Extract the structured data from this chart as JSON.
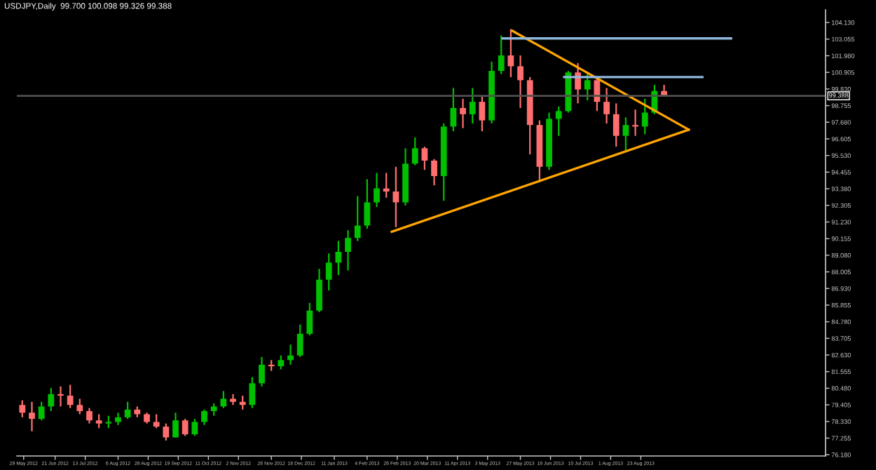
{
  "chart_data": {
    "type": "candlestick",
    "title": "USDJPY,Daily  99.700 100.098 99.326 99.388",
    "x": [
      "2012-05-28",
      "2012-06-04",
      "2012-06-11",
      "2012-06-18",
      "2012-06-25",
      "2012-07-02",
      "2012-07-09",
      "2012-07-16",
      "2012-07-23",
      "2012-07-30",
      "2012-08-06",
      "2012-08-13",
      "2012-08-20",
      "2012-08-27",
      "2012-09-03",
      "2012-09-10",
      "2012-09-17",
      "2012-09-24",
      "2012-10-01",
      "2012-10-08",
      "2012-10-15",
      "2012-10-22",
      "2012-10-29",
      "2012-11-05",
      "2012-11-12",
      "2012-11-19",
      "2012-11-26",
      "2012-12-03",
      "2012-12-10",
      "2012-12-17",
      "2012-12-24",
      "2012-12-31",
      "2013-01-07",
      "2013-01-14",
      "2013-01-21",
      "2013-01-28",
      "2013-02-04",
      "2013-02-11",
      "2013-02-18",
      "2013-02-25",
      "2013-03-04",
      "2013-03-11",
      "2013-03-18",
      "2013-03-25",
      "2013-04-01",
      "2013-04-08",
      "2013-04-15",
      "2013-04-22",
      "2013-04-29",
      "2013-05-06",
      "2013-05-13",
      "2013-05-20",
      "2013-05-27",
      "2013-06-03",
      "2013-06-10",
      "2013-06-17",
      "2013-06-24",
      "2013-07-01",
      "2013-07-08",
      "2013-07-15",
      "2013-07-22",
      "2013-07-29",
      "2013-08-05",
      "2013-08-12",
      "2013-08-19",
      "2013-08-26",
      "2013-09-02",
      "2013-09-09"
    ],
    "ohlc": [
      [
        79.4,
        79.7,
        78.6,
        78.9
      ],
      [
        78.9,
        79.6,
        77.7,
        78.5
      ],
      [
        78.5,
        79.6,
        78.4,
        79.3
      ],
      [
        79.3,
        80.5,
        79.0,
        80.1
      ],
      [
        80.1,
        80.6,
        79.3,
        80.0
      ],
      [
        80.0,
        80.7,
        79.2,
        79.4
      ],
      [
        79.4,
        79.8,
        78.8,
        79.0
      ],
      [
        79.0,
        79.2,
        78.2,
        78.4
      ],
      [
        78.4,
        78.8,
        77.9,
        78.2
      ],
      [
        78.2,
        78.7,
        77.9,
        78.3
      ],
      [
        78.3,
        78.9,
        78.1,
        78.6
      ],
      [
        78.6,
        79.6,
        78.5,
        79.1
      ],
      [
        79.1,
        79.3,
        78.6,
        78.8
      ],
      [
        78.8,
        78.9,
        78.2,
        78.3
      ],
      [
        78.3,
        78.8,
        77.9,
        78.0
      ],
      [
        78.0,
        78.2,
        77.1,
        77.3
      ],
      [
        77.3,
        78.9,
        77.3,
        78.4
      ],
      [
        78.4,
        78.5,
        77.4,
        77.5
      ],
      [
        77.5,
        78.5,
        77.4,
        78.3
      ],
      [
        78.3,
        79.1,
        78.1,
        79.0
      ],
      [
        79.0,
        79.5,
        78.7,
        79.3
      ],
      [
        79.3,
        80.3,
        79.2,
        79.8
      ],
      [
        79.8,
        80.1,
        79.4,
        79.6
      ],
      [
        79.6,
        80.0,
        79.1,
        79.4
      ],
      [
        79.4,
        81.2,
        79.2,
        80.8
      ],
      [
        80.8,
        82.5,
        80.6,
        82.0
      ],
      [
        82.0,
        82.3,
        81.6,
        81.9
      ],
      [
        81.9,
        82.6,
        81.7,
        82.3
      ],
      [
        82.3,
        83.3,
        82.0,
        82.6
      ],
      [
        82.6,
        84.6,
        82.5,
        84.0
      ],
      [
        84.0,
        86.0,
        83.9,
        85.5
      ],
      [
        85.5,
        88.2,
        85.4,
        87.5
      ],
      [
        87.5,
        89.2,
        86.8,
        88.6
      ],
      [
        88.6,
        90.0,
        87.8,
        89.3
      ],
      [
        89.3,
        90.7,
        88.1,
        90.2
      ],
      [
        90.2,
        92.9,
        90.0,
        91.0
      ],
      [
        91.0,
        94.0,
        90.8,
        92.5
      ],
      [
        92.5,
        94.4,
        92.2,
        93.4
      ],
      [
        93.4,
        94.4,
        92.8,
        93.2
      ],
      [
        93.2,
        94.8,
        90.9,
        92.5
      ],
      [
        92.5,
        96.0,
        92.3,
        95.0
      ],
      [
        95.0,
        96.7,
        94.9,
        96.0
      ],
      [
        96.0,
        96.1,
        94.6,
        95.2
      ],
      [
        95.2,
        95.3,
        93.6,
        94.2
      ],
      [
        94.2,
        97.6,
        92.6,
        97.4
      ],
      [
        97.4,
        99.9,
        97.1,
        98.6
      ],
      [
        98.6,
        99.2,
        97.3,
        98.2
      ],
      [
        98.2,
        99.9,
        97.6,
        99.0
      ],
      [
        99.0,
        99.4,
        97.1,
        97.8
      ],
      [
        97.8,
        101.6,
        97.6,
        101.0
      ],
      [
        101.0,
        103.3,
        100.8,
        102.0
      ],
      [
        102.0,
        103.7,
        100.6,
        101.3
      ],
      [
        101.3,
        102.0,
        98.6,
        100.4
      ],
      [
        100.4,
        100.6,
        95.6,
        97.5
      ],
      [
        97.5,
        97.8,
        93.8,
        94.8
      ],
      [
        94.8,
        98.3,
        94.6,
        97.9
      ],
      [
        97.9,
        98.7,
        96.8,
        98.4
      ],
      [
        98.4,
        101.0,
        98.3,
        100.9
      ],
      [
        100.9,
        101.5,
        98.9,
        99.8
      ],
      [
        99.8,
        100.8,
        99.1,
        100.4
      ],
      [
        100.4,
        100.6,
        98.4,
        99.0
      ],
      [
        99.0,
        99.9,
        97.6,
        98.2
      ],
      [
        98.2,
        98.9,
        96.1,
        96.8
      ],
      [
        96.8,
        98.0,
        95.8,
        97.5
      ],
      [
        97.5,
        98.5,
        96.8,
        97.4
      ],
      [
        97.4,
        99.2,
        96.9,
        98.3
      ],
      [
        98.3,
        100.1,
        98.2,
        99.7
      ],
      [
        99.7,
        100.098,
        99.326,
        99.388
      ]
    ],
    "colors": [
      "#ff6f6f",
      "#ff6f6f",
      "#00c000",
      "#00c000",
      "#ff6f6f",
      "#ff6f6f",
      "#ff6f6f",
      "#ff6f6f",
      "#ff6f6f",
      "#00c000",
      "#00c000",
      "#00c000",
      "#ff6f6f",
      "#ff6f6f",
      "#ff6f6f",
      "#ff6f6f",
      "#00c000",
      "#ff6f6f",
      "#00c000",
      "#00c000",
      "#00c000",
      "#00c000",
      "#ff6f6f",
      "#ff6f6f",
      "#00c000",
      "#00c000",
      "#ff6f6f",
      "#00c000",
      "#00c000",
      "#00c000",
      "#00c000",
      "#00c000",
      "#00c000",
      "#00c000",
      "#00c000",
      "#00c000",
      "#00c000",
      "#00c000",
      "#ff6f6f",
      "#ff6f6f",
      "#00c000",
      "#00c000",
      "#ff6f6f",
      "#ff6f6f",
      "#00c000",
      "#00c000",
      "#ff6f6f",
      "#00c000",
      "#ff6f6f",
      "#00c000",
      "#00c000",
      "#ff6f6f",
      "#ff6f6f",
      "#ff6f6f",
      "#ff6f6f",
      "#00c000",
      "#00c000",
      "#00c000",
      "#ff6f6f",
      "#00c000",
      "#ff6f6f",
      "#ff6f6f",
      "#ff6f6f",
      "#00c000",
      "#ff6f6f",
      "#00c000",
      "#00c000",
      "#ff6f6f"
    ],
    "series": [
      {
        "type": "line",
        "color": "#ffa500",
        "x": [
          "2013-05-21",
          "2013-09-27"
        ],
        "values": [
          103.6,
          97.2
        ]
      },
      {
        "type": "line",
        "color": "#ffa500",
        "x": [
          "2013-02-22",
          "2013-09-27"
        ],
        "values": [
          90.6,
          97.2
        ]
      },
      {
        "type": "line",
        "color": "#8fb8dc",
        "x": [
          "2013-05-14",
          "2013-10-28"
        ],
        "values": [
          103.1,
          103.1
        ]
      },
      {
        "type": "line",
        "color": "#8fb8dc",
        "x": [
          "2013-06-28",
          "2013-10-07"
        ],
        "values": [
          100.6,
          100.6
        ]
      }
    ],
    "ref_lines": [
      {
        "axis": "y",
        "value": 99.388,
        "label": "99.388",
        "color": "#505050"
      }
    ],
    "line_style": "solid",
    "xlim": [
      "2012-05-24",
      "2014-01-05"
    ],
    "xticks": [
      {
        "value": "2012-05-29",
        "label": "29 May 2012"
      },
      {
        "value": "2012-06-21",
        "label": "21 Jun 2012"
      },
      {
        "value": "2012-07-13",
        "label": "13 Jul 2012"
      },
      {
        "value": "2012-08-06",
        "label": "6 Aug 2012"
      },
      {
        "value": "2012-08-28",
        "label": "28 Aug 2012"
      },
      {
        "value": "2012-09-19",
        "label": "19 Sep 2012"
      },
      {
        "value": "2012-10-11",
        "label": "11 Oct 2012"
      },
      {
        "value": "2012-11-02",
        "label": "2 Nov 2012"
      },
      {
        "value": "2012-11-26",
        "label": "26 Nov 2012"
      },
      {
        "value": "2012-12-18",
        "label": "18 Dec 2012"
      },
      {
        "value": "2013-01-11",
        "label": "11 Jan 2013"
      },
      {
        "value": "2013-02-04",
        "label": "4 Feb 2013"
      },
      {
        "value": "2013-02-26",
        "label": "26 Feb 2013"
      },
      {
        "value": "2013-03-20",
        "label": "20 Mar 2013"
      },
      {
        "value": "2013-04-11",
        "label": "11 Apr 2013"
      },
      {
        "value": "2013-05-03",
        "label": "3 May 2013"
      },
      {
        "value": "2013-05-27",
        "label": "27 May 2013"
      },
      {
        "value": "2013-06-18",
        "label": "18 Jun 2013"
      },
      {
        "value": "2013-07-10",
        "label": "10 Jul 2013"
      },
      {
        "value": "2013-08-01",
        "label": "1 Aug 2013"
      },
      {
        "value": "2013-08-23",
        "label": "23 Aug 2013"
      }
    ],
    "ylim": [
      76.1,
      104.95
    ],
    "yticks": [
      {
        "value": 76.18,
        "label": "76.180"
      },
      {
        "value": 77.255,
        "label": "77.255"
      },
      {
        "value": 78.33,
        "label": "78.330"
      },
      {
        "value": 79.405,
        "label": "79.405"
      },
      {
        "value": 80.48,
        "label": "80.480"
      },
      {
        "value": 81.555,
        "label": "81.555"
      },
      {
        "value": 82.63,
        "label": "82.630"
      },
      {
        "value": 83.705,
        "label": "83.705"
      },
      {
        "value": 84.78,
        "label": "84.780"
      },
      {
        "value": 85.855,
        "label": "85.855"
      },
      {
        "value": 86.93,
        "label": "86.930"
      },
      {
        "value": 88.005,
        "label": "88.005"
      },
      {
        "value": 89.08,
        "label": "89.080"
      },
      {
        "value": 90.155,
        "label": "90.155"
      },
      {
        "value": 91.23,
        "label": "91.230"
      },
      {
        "value": 92.305,
        "label": "92.305"
      },
      {
        "value": 93.38,
        "label": "93.380"
      },
      {
        "value": 94.455,
        "label": "94.455"
      },
      {
        "value": 95.53,
        "label": "95.530"
      },
      {
        "value": 96.605,
        "label": "96.605"
      },
      {
        "value": 97.68,
        "label": "97.680"
      },
      {
        "value": 98.755,
        "label": "98.755"
      },
      {
        "value": 99.83,
        "label": "99.830"
      },
      {
        "value": 100.905,
        "label": "100.905"
      },
      {
        "value": 101.98,
        "label": "101.980"
      },
      {
        "value": 103.055,
        "label": "103.055"
      },
      {
        "value": 104.13,
        "label": "104.130"
      }
    ]
  }
}
